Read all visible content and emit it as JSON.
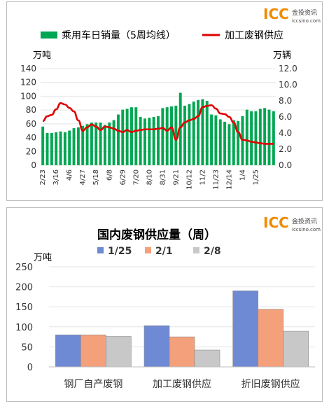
{
  "brand": {
    "logo_text": "ICC",
    "logo_cn": "金投资讯",
    "logo_url": "iccsino.com",
    "logo_color": "#f08a00"
  },
  "chart_data": [
    {
      "type": "bar+line",
      "legend": [
        "乘用车日销量（5周均线）",
        "加工废钢供应"
      ],
      "left_unit": "万吨",
      "right_unit": "万辆",
      "left_ylim": [
        0,
        140
      ],
      "left_ticks": [
        "0",
        "20",
        "40",
        "60",
        "80",
        "100",
        "120",
        "140"
      ],
      "right_ylim": [
        0,
        12
      ],
      "right_ticks": [
        "0.0",
        "2.0",
        "4.0",
        "6.0",
        "8.0",
        "10.0",
        "12.0"
      ],
      "x_tick_labels": [
        "2/23",
        "3/16",
        "4/6",
        "4/27",
        "5/18",
        "6/8",
        "6/29",
        "7/20",
        "8/10",
        "8/31",
        "9/21",
        "10/12",
        "11/2",
        "11/23",
        "12/14",
        "1/4",
        "1/25"
      ],
      "bar_color": "#00a651",
      "line_color": "#e00000",
      "series": [
        {
          "name": "乘用车日销量（5周均线）",
          "axis": "right",
          "values": [
            4.8,
            4.0,
            4.0,
            4.1,
            4.2,
            4.1,
            4.3,
            4.6,
            4.7,
            4.9,
            5.1,
            5.3,
            5.3,
            5.3,
            5.0,
            5.3,
            5.6,
            6.3,
            6.9,
            7.0,
            7.2,
            7.2,
            6.0,
            5.8,
            5.9,
            6.0,
            6.1,
            7.1,
            7.2,
            7.3,
            7.4,
            9.0,
            7.4,
            7.6,
            7.9,
            8.1,
            8.2,
            8.0,
            6.3,
            6.2,
            5.7,
            5.4,
            5.1,
            5.6,
            5.5,
            6.1,
            6.9,
            6.7,
            6.7,
            7.0,
            7.1,
            6.9,
            6.7
          ],
          "shown_as": "bars"
        },
        {
          "name": "加工废钢供应",
          "axis": "left",
          "values": [
            64,
            71,
            73,
            81,
            90,
            88,
            83,
            78,
            65,
            50,
            55,
            59,
            56,
            51,
            56,
            55,
            53,
            50,
            48,
            51,
            48,
            50,
            51,
            52,
            52,
            52,
            53,
            54,
            50,
            55,
            37,
            55,
            62,
            65,
            67,
            71,
            84,
            86,
            87,
            82,
            75,
            74,
            70,
            62,
            48,
            37,
            36,
            34,
            33,
            32,
            31,
            31,
            31
          ]
        }
      ]
    },
    {
      "type": "bar",
      "title": "国内废钢供应量（周）",
      "left_unit": "万吨",
      "ylim": [
        0,
        250
      ],
      "y_ticks": [
        "0",
        "50",
        "100",
        "150",
        "200",
        "250"
      ],
      "categories": [
        "钢厂自产废钢",
        "加工废钢供应",
        "折旧废钢供应"
      ],
      "series": [
        {
          "name": "1/25",
          "color": "#6f8ad4",
          "values": [
            80,
            103,
            190
          ]
        },
        {
          "name": "2/1",
          "color": "#f4a07a",
          "values": [
            80,
            75,
            144
          ]
        },
        {
          "name": "2/8",
          "color": "#c8c8c8",
          "values": [
            76,
            42,
            89
          ]
        }
      ]
    }
  ]
}
